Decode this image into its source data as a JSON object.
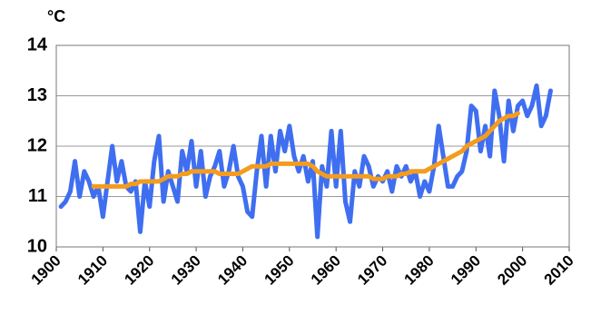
{
  "chart_data": {
    "type": "line",
    "y_label": "°C",
    "x": [
      1901,
      1902,
      1903,
      1904,
      1905,
      1906,
      1907,
      1908,
      1909,
      1910,
      1911,
      1912,
      1913,
      1914,
      1915,
      1916,
      1917,
      1918,
      1919,
      1920,
      1921,
      1922,
      1923,
      1924,
      1925,
      1926,
      1927,
      1928,
      1929,
      1930,
      1931,
      1932,
      1933,
      1934,
      1935,
      1936,
      1937,
      1938,
      1939,
      1940,
      1941,
      1942,
      1943,
      1944,
      1945,
      1946,
      1947,
      1948,
      1949,
      1950,
      1951,
      1952,
      1953,
      1954,
      1955,
      1956,
      1957,
      1958,
      1959,
      1960,
      1961,
      1962,
      1963,
      1964,
      1965,
      1966,
      1967,
      1968,
      1969,
      1970,
      1971,
      1972,
      1973,
      1974,
      1975,
      1976,
      1977,
      1978,
      1979,
      1980,
      1981,
      1982,
      1983,
      1984,
      1985,
      1986,
      1987,
      1988,
      1989,
      1990,
      1991,
      1992,
      1993,
      1994,
      1995,
      1996,
      1997,
      1998,
      1999,
      2000,
      2001,
      2002,
      2003,
      2004,
      2005,
      2006
    ],
    "series": [
      {
        "color": "#3f6ff0",
        "values": [
          10.8,
          10.9,
          11.1,
          11.7,
          11.0,
          11.5,
          11.3,
          11.0,
          11.2,
          10.6,
          11.3,
          12.0,
          11.3,
          11.7,
          11.2,
          11.1,
          11.3,
          10.3,
          11.3,
          10.8,
          11.7,
          12.2,
          10.9,
          11.5,
          11.2,
          10.9,
          11.9,
          11.5,
          12.1,
          11.2,
          11.9,
          11.0,
          11.4,
          11.6,
          11.9,
          11.2,
          11.5,
          12.0,
          11.4,
          11.2,
          10.7,
          10.6,
          11.5,
          12.2,
          11.2,
          12.2,
          11.5,
          12.3,
          11.9,
          12.4,
          11.8,
          11.5,
          11.8,
          11.3,
          11.7,
          10.2,
          11.6,
          11.2,
          12.3,
          11.2,
          12.3,
          10.9,
          10.5,
          11.5,
          11.2,
          11.8,
          11.6,
          11.2,
          11.4,
          11.3,
          11.5,
          11.1,
          11.6,
          11.4,
          11.6,
          11.3,
          11.5,
          11.0,
          11.3,
          11.1,
          11.6,
          12.4,
          11.8,
          11.2,
          11.2,
          11.4,
          11.5,
          11.9,
          12.8,
          12.7,
          11.9,
          12.4,
          11.8,
          13.1,
          12.6,
          11.7,
          12.9,
          12.3,
          12.8,
          12.9,
          12.6,
          12.8,
          13.2,
          12.4,
          12.6,
          13.1
        ]
      },
      {
        "color": "#f39c1e",
        "values": [
          null,
          null,
          null,
          null,
          null,
          null,
          null,
          11.2,
          11.2,
          11.2,
          11.2,
          11.2,
          11.2,
          11.2,
          11.2,
          11.25,
          11.25,
          11.3,
          11.3,
          11.3,
          11.3,
          11.3,
          11.35,
          11.4,
          11.4,
          11.4,
          11.45,
          11.45,
          11.5,
          11.5,
          11.5,
          11.5,
          11.5,
          11.5,
          11.45,
          11.45,
          11.45,
          11.45,
          11.45,
          11.5,
          11.55,
          11.6,
          11.6,
          11.6,
          11.6,
          11.65,
          11.65,
          11.65,
          11.65,
          11.65,
          11.65,
          11.65,
          11.65,
          11.65,
          11.6,
          11.5,
          11.45,
          11.4,
          11.4,
          11.4,
          11.4,
          11.4,
          11.4,
          11.4,
          11.4,
          11.4,
          11.4,
          11.35,
          11.35,
          11.35,
          11.4,
          11.4,
          11.4,
          11.45,
          11.45,
          11.5,
          11.5,
          11.5,
          11.5,
          11.55,
          11.6,
          11.65,
          11.7,
          11.75,
          11.8,
          11.85,
          11.9,
          12.0,
          12.05,
          12.1,
          12.15,
          12.2,
          12.3,
          12.4,
          12.5,
          12.55,
          12.6,
          12.6,
          12.65,
          null,
          null,
          null,
          null,
          null,
          null,
          null
        ]
      }
    ],
    "xlim": [
      1900,
      2010
    ],
    "xticks": [
      1900,
      1910,
      1920,
      1930,
      1940,
      1950,
      1960,
      1970,
      1980,
      1990,
      2000,
      2010
    ],
    "ylim": [
      10,
      14
    ],
    "yticks": [
      10,
      11,
      12,
      13,
      14
    ],
    "grid": true
  }
}
